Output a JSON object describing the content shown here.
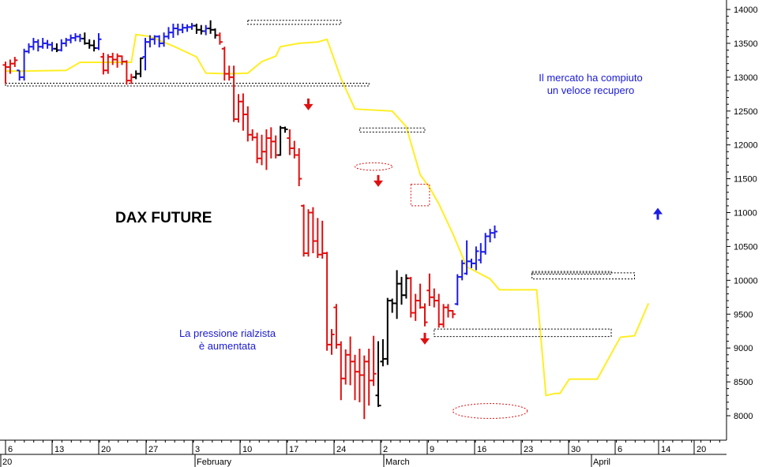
{
  "chart_data": {
    "type": "ohlc",
    "title": "DAX FUTURE",
    "annotations": [
      {
        "name": "annotation-recovery",
        "lines": [
          "Il mercato ha compiuto",
          "un veloce recupero"
        ]
      },
      {
        "name": "annotation-pressure",
        "lines": [
          "La pressione rialzista",
          "è aumentata"
        ]
      }
    ],
    "x_tick_labels": [
      "6",
      "13",
      "20",
      "27",
      "3",
      "10",
      "17",
      "24",
      "2",
      "9",
      "16",
      "23",
      "30",
      "6",
      "14",
      "20"
    ],
    "x_month_labels": [
      "20",
      "February",
      "March",
      "April"
    ],
    "y_ticks": [
      8000,
      8500,
      9000,
      9500,
      10000,
      10500,
      11000,
      11500,
      12000,
      12500,
      13000,
      13500,
      14000
    ],
    "ylim": [
      7850,
      14100
    ],
    "bar_colors": {
      "up": "#1c1ce6",
      "down": "#e01010",
      "neutral": "#000000"
    },
    "moving_average_color": "#ffee22",
    "bars": [
      {
        "o": 13180,
        "h": 13230,
        "l": 12900,
        "c": 13150,
        "color": "down"
      },
      {
        "o": 13150,
        "h": 13260,
        "l": 13050,
        "c": 13200,
        "color": "down"
      },
      {
        "o": 13200,
        "h": 13300,
        "l": 13150,
        "c": 13250,
        "color": "down"
      },
      {
        "o": 13100,
        "h": 13100,
        "l": 12950,
        "c": 13000,
        "color": "up"
      },
      {
        "o": 13000,
        "h": 13420,
        "l": 12950,
        "c": 13380,
        "color": "up"
      },
      {
        "o": 13380,
        "h": 13500,
        "l": 13350,
        "c": 13450,
        "color": "up"
      },
      {
        "o": 13450,
        "h": 13580,
        "l": 13400,
        "c": 13520,
        "color": "up"
      },
      {
        "o": 13520,
        "h": 13560,
        "l": 13380,
        "c": 13450,
        "color": "up"
      },
      {
        "o": 13450,
        "h": 13580,
        "l": 13420,
        "c": 13500,
        "color": "up"
      },
      {
        "o": 13500,
        "h": 13550,
        "l": 13420,
        "c": 13480,
        "color": "up"
      },
      {
        "o": 13480,
        "h": 13520,
        "l": 13380,
        "c": 13420,
        "color": "up"
      },
      {
        "o": 13420,
        "h": 13500,
        "l": 13370,
        "c": 13400,
        "color": "neutral"
      },
      {
        "o": 13400,
        "h": 13560,
        "l": 13380,
        "c": 13500,
        "color": "up"
      },
      {
        "o": 13500,
        "h": 13580,
        "l": 13450,
        "c": 13550,
        "color": "up"
      },
      {
        "o": 13550,
        "h": 13630,
        "l": 13500,
        "c": 13580,
        "color": "up"
      },
      {
        "o": 13580,
        "h": 13650,
        "l": 13530,
        "c": 13600,
        "color": "up"
      },
      {
        "o": 13600,
        "h": 13640,
        "l": 13520,
        "c": 13570,
        "color": "up"
      },
      {
        "o": 13570,
        "h": 13660,
        "l": 13480,
        "c": 13500,
        "color": "neutral"
      },
      {
        "o": 13500,
        "h": 13560,
        "l": 13420,
        "c": 13470,
        "color": "neutral"
      },
      {
        "o": 13470,
        "h": 13550,
        "l": 13380,
        "c": 13430,
        "color": "neutral"
      },
      {
        "o": 13430,
        "h": 13650,
        "l": 13400,
        "c": 13560,
        "color": "up"
      },
      {
        "o": 13300,
        "h": 13360,
        "l": 13040,
        "c": 13100,
        "color": "down"
      },
      {
        "o": 13100,
        "h": 13340,
        "l": 13050,
        "c": 13300,
        "color": "down"
      },
      {
        "o": 13300,
        "h": 13360,
        "l": 13180,
        "c": 13260,
        "color": "down"
      },
      {
        "o": 13260,
        "h": 13350,
        "l": 13140,
        "c": 13310,
        "color": "down"
      },
      {
        "o": 13310,
        "h": 13320,
        "l": 13180,
        "c": 13230,
        "color": "down"
      },
      {
        "o": 13230,
        "h": 13250,
        "l": 12890,
        "c": 12950,
        "color": "down"
      },
      {
        "o": 12950,
        "h": 13050,
        "l": 12900,
        "c": 13000,
        "color": "down"
      },
      {
        "o": 13000,
        "h": 13100,
        "l": 12970,
        "c": 13050,
        "color": "neutral"
      },
      {
        "o": 13050,
        "h": 13290,
        "l": 13000,
        "c": 13280,
        "color": "neutral"
      },
      {
        "o": 13300,
        "h": 13580,
        "l": 13100,
        "c": 13520,
        "color": "up"
      },
      {
        "o": 13520,
        "h": 13620,
        "l": 13440,
        "c": 13560,
        "color": "up"
      },
      {
        "o": 13560,
        "h": 13620,
        "l": 13480,
        "c": 13600,
        "color": "up"
      },
      {
        "o": 13600,
        "h": 13620,
        "l": 13440,
        "c": 13500,
        "color": "up"
      },
      {
        "o": 13500,
        "h": 13660,
        "l": 13450,
        "c": 13600,
        "color": "up"
      },
      {
        "o": 13600,
        "h": 13740,
        "l": 13560,
        "c": 13660,
        "color": "up"
      },
      {
        "o": 13660,
        "h": 13790,
        "l": 13580,
        "c": 13720,
        "color": "up"
      },
      {
        "o": 13720,
        "h": 13790,
        "l": 13620,
        "c": 13700,
        "color": "up"
      },
      {
        "o": 13700,
        "h": 13790,
        "l": 13650,
        "c": 13730,
        "color": "up"
      },
      {
        "o": 13730,
        "h": 13780,
        "l": 13670,
        "c": 13740,
        "color": "up"
      },
      {
        "o": 13740,
        "h": 13800,
        "l": 13700,
        "c": 13760,
        "color": "up"
      },
      {
        "o": 13760,
        "h": 13790,
        "l": 13640,
        "c": 13700,
        "color": "neutral"
      },
      {
        "o": 13700,
        "h": 13770,
        "l": 13630,
        "c": 13680,
        "color": "neutral"
      },
      {
        "o": 13680,
        "h": 13770,
        "l": 13620,
        "c": 13720,
        "color": "up"
      },
      {
        "o": 13720,
        "h": 13840,
        "l": 13640,
        "c": 13700,
        "color": "neutral"
      },
      {
        "o": 13700,
        "h": 13720,
        "l": 13570,
        "c": 13620,
        "color": "neutral"
      },
      {
        "o": 13620,
        "h": 13660,
        "l": 13480,
        "c": 13520,
        "color": "down"
      },
      {
        "o": 13420,
        "h": 13450,
        "l": 12950,
        "c": 13050,
        "color": "down"
      },
      {
        "o": 13050,
        "h": 13170,
        "l": 12950,
        "c": 13000,
        "color": "down"
      },
      {
        "o": 13000,
        "h": 13170,
        "l": 12340,
        "c": 12380,
        "color": "down"
      },
      {
        "o": 12380,
        "h": 12750,
        "l": 12330,
        "c": 12640,
        "color": "down"
      },
      {
        "o": 12640,
        "h": 12760,
        "l": 12210,
        "c": 12450,
        "color": "down"
      },
      {
        "o": 12450,
        "h": 12570,
        "l": 12050,
        "c": 12150,
        "color": "down"
      },
      {
        "o": 12150,
        "h": 12230,
        "l": 12060,
        "c": 12110,
        "color": "down"
      },
      {
        "o": 12110,
        "h": 12180,
        "l": 11730,
        "c": 11800,
        "color": "down"
      },
      {
        "o": 11800,
        "h": 12150,
        "l": 11700,
        "c": 11900,
        "color": "down"
      },
      {
        "o": 11900,
        "h": 12230,
        "l": 11630,
        "c": 12100,
        "color": "down"
      },
      {
        "o": 12100,
        "h": 12260,
        "l": 11800,
        "c": 12050,
        "color": "down"
      },
      {
        "o": 12050,
        "h": 12140,
        "l": 11800,
        "c": 11850,
        "color": "down"
      },
      {
        "o": 11850,
        "h": 12280,
        "l": 11840,
        "c": 12250,
        "color": "neutral"
      },
      {
        "o": 12250,
        "h": 12270,
        "l": 12180,
        "c": 12230,
        "color": "neutral"
      },
      {
        "o": 12100,
        "h": 12230,
        "l": 11850,
        "c": 11950,
        "color": "down"
      },
      {
        "o": 11950,
        "h": 12060,
        "l": 11800,
        "c": 11850,
        "color": "down"
      },
      {
        "o": 11850,
        "h": 11950,
        "l": 11390,
        "c": 11500,
        "color": "down"
      },
      {
        "o": 11100,
        "h": 11120,
        "l": 10350,
        "c": 10400,
        "color": "down"
      },
      {
        "o": 10400,
        "h": 11050,
        "l": 10350,
        "c": 11000,
        "color": "down"
      },
      {
        "o": 11000,
        "h": 11080,
        "l": 10400,
        "c": 10580,
        "color": "down"
      },
      {
        "o": 10580,
        "h": 10920,
        "l": 10330,
        "c": 10380,
        "color": "down"
      },
      {
        "o": 10380,
        "h": 10880,
        "l": 10320,
        "c": 10400,
        "color": "down"
      },
      {
        "o": 10400,
        "h": 10420,
        "l": 8960,
        "c": 9050,
        "color": "down"
      },
      {
        "o": 9050,
        "h": 9280,
        "l": 8900,
        "c": 9200,
        "color": "down"
      },
      {
        "o": 9600,
        "h": 9650,
        "l": 8990,
        "c": 9050,
        "color": "down"
      },
      {
        "o": 9050,
        "h": 9100,
        "l": 8230,
        "c": 8550,
        "color": "down"
      },
      {
        "o": 8550,
        "h": 8980,
        "l": 8460,
        "c": 8900,
        "color": "down"
      },
      {
        "o": 8900,
        "h": 9170,
        "l": 8450,
        "c": 8800,
        "color": "down"
      },
      {
        "o": 8800,
        "h": 8900,
        "l": 8230,
        "c": 8650,
        "color": "down"
      },
      {
        "o": 8650,
        "h": 8990,
        "l": 8200,
        "c": 8600,
        "color": "down"
      },
      {
        "o": 8600,
        "h": 8890,
        "l": 7950,
        "c": 8800,
        "color": "down"
      },
      {
        "o": 8800,
        "h": 8990,
        "l": 8150,
        "c": 8520,
        "color": "down"
      },
      {
        "o": 8520,
        "h": 9180,
        "l": 8440,
        "c": 8620,
        "color": "down"
      },
      {
        "o": 8300,
        "h": 9100,
        "l": 8130,
        "c": 8150,
        "color": "neutral"
      },
      {
        "o": 8800,
        "h": 9130,
        "l": 8730,
        "c": 8840,
        "color": "neutral"
      },
      {
        "o": 8840,
        "h": 9740,
        "l": 8750,
        "c": 9700,
        "color": "neutral"
      },
      {
        "o": 9700,
        "h": 9730,
        "l": 9520,
        "c": 9660,
        "color": "neutral"
      },
      {
        "o": 9660,
        "h": 10150,
        "l": 9430,
        "c": 9950,
        "color": "neutral"
      },
      {
        "o": 9950,
        "h": 10050,
        "l": 9640,
        "c": 9780,
        "color": "neutral"
      },
      {
        "o": 9780,
        "h": 10090,
        "l": 9730,
        "c": 10030,
        "color": "neutral"
      },
      {
        "o": 10030,
        "h": 10050,
        "l": 9450,
        "c": 9520,
        "color": "down"
      },
      {
        "o": 9520,
        "h": 9800,
        "l": 9400,
        "c": 9700,
        "color": "down"
      },
      {
        "o": 9700,
        "h": 9950,
        "l": 9580,
        "c": 9600,
        "color": "down"
      },
      {
        "o": 9600,
        "h": 9660,
        "l": 9320,
        "c": 9380,
        "color": "down"
      },
      {
        "o": 9850,
        "h": 10100,
        "l": 9620,
        "c": 9750,
        "color": "down"
      },
      {
        "o": 9750,
        "h": 9880,
        "l": 9600,
        "c": 9700,
        "color": "down"
      },
      {
        "o": 9700,
        "h": 9800,
        "l": 9300,
        "c": 9350,
        "color": "down"
      },
      {
        "o": 9350,
        "h": 9650,
        "l": 9300,
        "c": 9600,
        "color": "down"
      },
      {
        "o": 9600,
        "h": 9650,
        "l": 9450,
        "c": 9550,
        "color": "down"
      },
      {
        "o": 9550,
        "h": 9560,
        "l": 9440,
        "c": 9500,
        "color": "down"
      },
      {
        "o": 9650,
        "h": 10090,
        "l": 9630,
        "c": 10050,
        "color": "up"
      },
      {
        "o": 10050,
        "h": 10300,
        "l": 10000,
        "c": 10250,
        "color": "up"
      },
      {
        "o": 10100,
        "h": 10590,
        "l": 10080,
        "c": 10280,
        "color": "up"
      },
      {
        "o": 10280,
        "h": 10320,
        "l": 10180,
        "c": 10250,
        "color": "up"
      },
      {
        "o": 10250,
        "h": 10500,
        "l": 10150,
        "c": 10430,
        "color": "up"
      },
      {
        "o": 10300,
        "h": 10550,
        "l": 10250,
        "c": 10420,
        "color": "up"
      },
      {
        "o": 10420,
        "h": 10700,
        "l": 10380,
        "c": 10650,
        "color": "up"
      },
      {
        "o": 10650,
        "h": 10760,
        "l": 10560,
        "c": 10700,
        "color": "up"
      },
      {
        "o": 10700,
        "h": 10810,
        "l": 10620,
        "c": 10720,
        "color": "up"
      }
    ],
    "moving_average": [
      {
        "day": 0,
        "v": 13090
      },
      {
        "day": 3,
        "v": 13090
      },
      {
        "day": 13,
        "v": 13100
      },
      {
        "day": 16,
        "v": 13220
      },
      {
        "day": 27,
        "v": 13220
      },
      {
        "day": 28,
        "v": 13630
      },
      {
        "day": 31,
        "v": 13600
      },
      {
        "day": 36,
        "v": 13460
      },
      {
        "day": 41,
        "v": 13300
      },
      {
        "day": 43,
        "v": 13060
      },
      {
        "day": 48,
        "v": 13050
      },
      {
        "day": 52,
        "v": 13060
      },
      {
        "day": 55,
        "v": 13230
      },
      {
        "day": 58,
        "v": 13310
      },
      {
        "day": 59,
        "v": 13450
      },
      {
        "day": 63,
        "v": 13500
      },
      {
        "day": 67,
        "v": 13520
      },
      {
        "day": 69,
        "v": 13560
      },
      {
        "day": 72,
        "v": 12980
      },
      {
        "day": 75,
        "v": 12530
      },
      {
        "day": 83,
        "v": 12500
      },
      {
        "day": 86,
        "v": 12270
      },
      {
        "day": 89,
        "v": 11560
      },
      {
        "day": 91,
        "v": 11370
      },
      {
        "day": 93,
        "v": 11130
      },
      {
        "day": 96,
        "v": 10690
      },
      {
        "day": 99,
        "v": 10200
      },
      {
        "day": 104,
        "v": 10020
      },
      {
        "day": 106,
        "v": 9860
      },
      {
        "day": 114,
        "v": 9860
      },
      {
        "day": 116,
        "v": 8300
      },
      {
        "day": 118,
        "v": 8330
      },
      {
        "day": 119,
        "v": 8330
      },
      {
        "day": 121,
        "v": 8540
      },
      {
        "day": 127,
        "v": 8540
      },
      {
        "day": 131,
        "v": 9040
      },
      {
        "day": 132,
        "v": 9160
      },
      {
        "day": 135,
        "v": 9180
      },
      {
        "day": 138,
        "v": 9660
      }
    ],
    "ma_anchor_days": [
      0,
      3,
      13,
      16,
      27,
      28,
      31,
      36,
      41,
      43,
      48,
      52,
      55,
      58,
      59,
      63,
      67,
      69,
      72,
      75,
      83,
      86,
      89,
      91,
      93,
      96,
      99,
      104,
      106,
      114,
      116,
      118,
      119,
      121,
      127,
      131,
      132,
      135,
      138
    ],
    "support_resistance_zones": [
      {
        "from_day": 0,
        "to_day": 78,
        "low": 12870,
        "high": 12910
      },
      {
        "from_day": 52,
        "to_day": 72,
        "low": 13780,
        "high": 13840
      },
      {
        "from_day": 76,
        "to_day": 90,
        "low": 12190,
        "high": 12250
      },
      {
        "from_day": 113,
        "to_day": 135,
        "low": 10020,
        "high": 10110
      },
      {
        "from_day": 113,
        "to_day": 130,
        "low": 10090,
        "high": 10130
      },
      {
        "from_day": 92,
        "to_day": 130,
        "low": 9170,
        "high": 9280
      }
    ],
    "highlight_boxes": [
      {
        "from_day": 87,
        "to_day": 91,
        "low": 11100,
        "high": 11420
      }
    ],
    "ellipses": [
      {
        "day": 79,
        "value": 11680,
        "rx_days": 4,
        "ry_value": 55
      },
      {
        "day": 104,
        "value": 8070,
        "rx_days": 8,
        "ry_value": 110
      }
    ],
    "arrows": [
      {
        "day": 65,
        "value": 12580,
        "direction": "down",
        "color": "#e01010"
      },
      {
        "day": 80,
        "value": 11450,
        "direction": "down",
        "color": "#e01010"
      },
      {
        "day": 90,
        "value": 9120,
        "direction": "down",
        "color": "#e01010"
      },
      {
        "day": 140,
        "value": 11000,
        "direction": "up",
        "color": "#1c1ce6"
      }
    ]
  }
}
